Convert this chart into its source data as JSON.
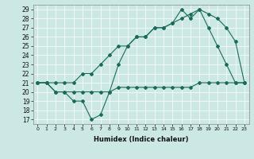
{
  "xlabel": "Humidex (Indice chaleur)",
  "bg_color": "#cce8e4",
  "line_color": "#1a6b5a",
  "xlim": [
    -0.5,
    23.5
  ],
  "ylim": [
    16.5,
    29.5
  ],
  "xticks": [
    0,
    1,
    2,
    3,
    4,
    5,
    6,
    7,
    8,
    9,
    10,
    11,
    12,
    13,
    14,
    15,
    16,
    17,
    18,
    19,
    20,
    21,
    22,
    23
  ],
  "yticks": [
    17,
    18,
    19,
    20,
    21,
    22,
    23,
    24,
    25,
    26,
    27,
    28,
    29
  ],
  "line1_x": [
    0,
    1,
    2,
    3,
    4,
    5,
    6,
    7,
    8,
    9,
    10,
    11,
    12,
    13,
    14,
    15,
    16,
    17,
    18,
    19,
    20,
    21,
    22,
    23
  ],
  "line1_y": [
    21,
    21,
    20,
    20,
    20,
    20,
    20,
    20,
    20,
    20.5,
    20.5,
    20.5,
    20.5,
    20.5,
    20.5,
    20.5,
    20.5,
    20.5,
    21,
    21,
    21,
    21,
    21,
    21
  ],
  "line2_x": [
    0,
    1,
    2,
    3,
    4,
    5,
    6,
    7,
    8,
    9,
    10,
    11,
    12,
    13,
    14,
    15,
    16,
    17,
    18,
    19,
    20,
    21,
    22,
    23
  ],
  "line2_y": [
    21,
    21,
    20,
    20,
    19,
    19,
    17,
    17.5,
    20,
    23,
    25,
    26,
    26,
    27,
    27,
    27.5,
    29,
    28,
    29,
    27,
    25,
    23,
    21,
    21
  ],
  "line3_x": [
    0,
    1,
    2,
    3,
    4,
    5,
    6,
    7,
    8,
    9,
    10,
    11,
    12,
    13,
    14,
    15,
    16,
    17,
    18,
    19,
    20,
    21,
    22,
    23
  ],
  "line3_y": [
    21,
    21,
    21,
    21,
    21,
    22,
    22,
    23,
    24,
    25,
    25,
    26,
    26,
    27,
    27,
    27.5,
    28,
    28.5,
    29,
    28.5,
    28,
    27,
    25.5,
    21
  ]
}
